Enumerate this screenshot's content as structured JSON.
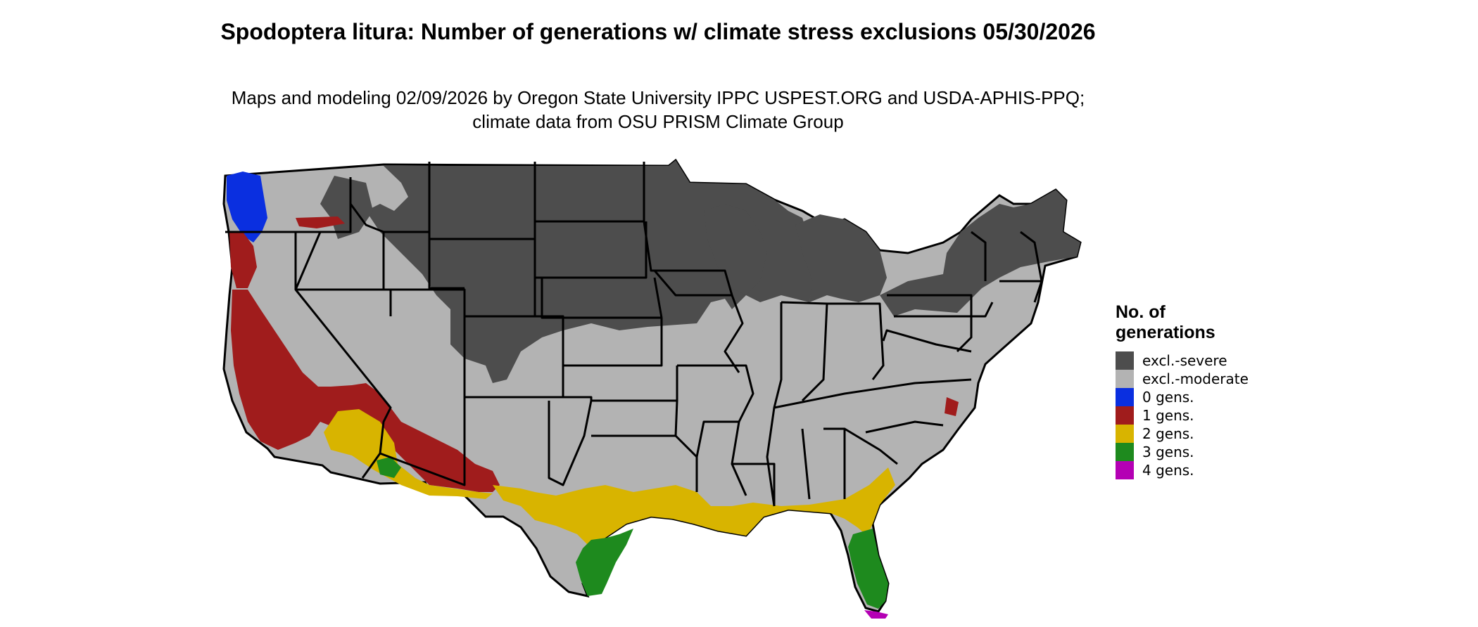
{
  "title": "Spodoptera litura: Number of generations w/ climate stress exclusions 05/30/2026",
  "subtitle": "Maps and modeling 02/09/2026 by Oregon State University IPPC USPEST.ORG and USDA-APHIS-PPQ; climate data from OSU PRISM Climate Group",
  "legend": {
    "title": "No. of generations",
    "items": [
      {
        "label": "excl.-severe",
        "color": "#4d4d4d"
      },
      {
        "label": "excl.-moderate",
        "color": "#b3b3b3"
      },
      {
        "label": "0 gens.",
        "color": "#0a2fe0"
      },
      {
        "label": "1 gens.",
        "color": "#a01c1c"
      },
      {
        "label": "2 gens.",
        "color": "#d8b400"
      },
      {
        "label": "3 gens.",
        "color": "#1e8a1e"
      },
      {
        "label": "4 gens.",
        "color": "#b400b4"
      }
    ]
  }
}
